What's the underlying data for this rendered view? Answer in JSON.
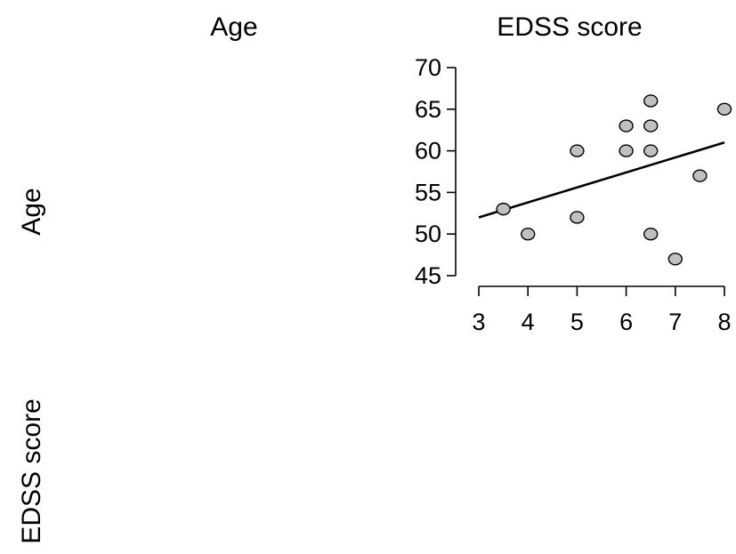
{
  "matrix": {
    "column_labels": [
      "Age",
      "EDSS score"
    ],
    "row_labels": [
      "Age",
      "EDSS score"
    ]
  },
  "chart_data": {
    "type": "scatter",
    "title": "",
    "xlabel": "",
    "ylabel": "",
    "xlim": [
      3,
      8
    ],
    "ylim": [
      45,
      70
    ],
    "x_ticks": [
      3,
      4,
      5,
      6,
      7,
      8
    ],
    "y_ticks": [
      45,
      50,
      55,
      60,
      65,
      70
    ],
    "grid": false,
    "point_color": "#c0c0c0",
    "points": [
      {
        "x": 3.5,
        "y": 53
      },
      {
        "x": 4,
        "y": 50
      },
      {
        "x": 5,
        "y": 60
      },
      {
        "x": 5,
        "y": 52
      },
      {
        "x": 6,
        "y": 63
      },
      {
        "x": 6,
        "y": 60
      },
      {
        "x": 6.5,
        "y": 66
      },
      {
        "x": 6.5,
        "y": 63
      },
      {
        "x": 6.5,
        "y": 60
      },
      {
        "x": 6.5,
        "y": 50
      },
      {
        "x": 7,
        "y": 47
      },
      {
        "x": 7.5,
        "y": 57
      },
      {
        "x": 8,
        "y": 65
      }
    ],
    "fit_line": {
      "x": [
        3,
        8
      ],
      "y": [
        52,
        61
      ]
    }
  }
}
